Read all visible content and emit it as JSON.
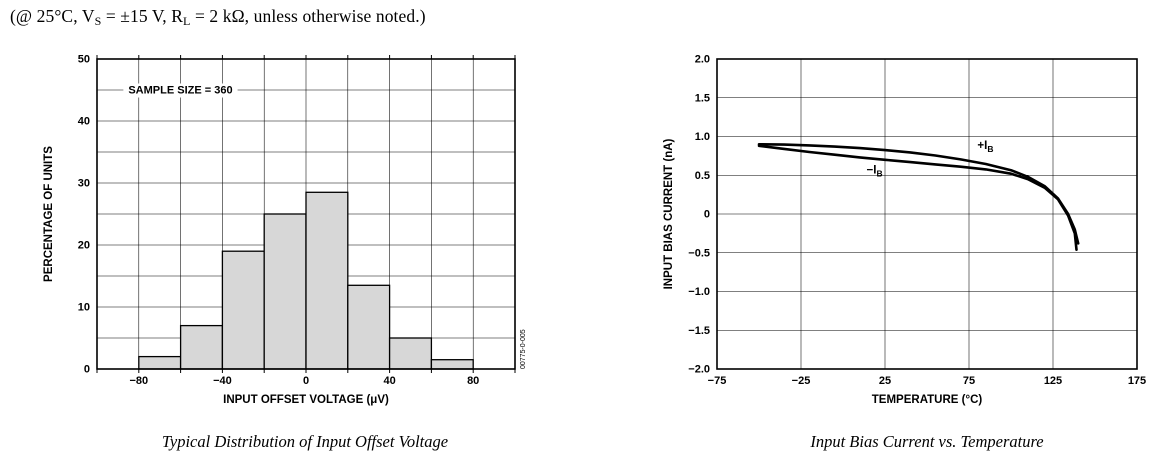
{
  "note": {
    "text": "(@ 25°C, VS = ±15 V, RL = 2 kΩ, unless otherwise noted.)",
    "parts": [
      {
        "text": "(@ 25°C, V"
      },
      {
        "text": "S",
        "sub": true
      },
      {
        "text": " = ±15 V, R"
      },
      {
        "text": "L",
        "sub": true
      },
      {
        "text": " = 2 kΩ, unless otherwise noted.)"
      }
    ]
  },
  "chart_data": [
    {
      "id": "offset-voltage-histogram",
      "type": "bar",
      "caption": "Typical Distribution of Input Offset Voltage",
      "annotation": {
        "text": "SAMPLE SIZE = 360",
        "x": -85,
        "y": 45
      },
      "xlabel": "INPUT OFFSET VOLTAGE (μV)",
      "ylabel": "PERCENTAGE OF UNITS",
      "xlim": [
        -100,
        100
      ],
      "ylim": [
        0,
        50
      ],
      "grid": true,
      "border_ticks": true,
      "x_grid_step": 20,
      "y_grid_step": 5,
      "x_ticks": [
        {
          "v": -80,
          "label": "−80"
        },
        {
          "v": -40,
          "label": "−40"
        },
        {
          "v": 0,
          "label": "0"
        },
        {
          "v": 40,
          "label": "40"
        },
        {
          "v": 80,
          "label": "80"
        }
      ],
      "y_ticks": [
        {
          "v": 0,
          "label": "0"
        },
        {
          "v": 10,
          "label": "10"
        },
        {
          "v": 20,
          "label": "20"
        },
        {
          "v": 30,
          "label": "30"
        },
        {
          "v": 40,
          "label": "40"
        },
        {
          "v": 50,
          "label": "50"
        }
      ],
      "bin_width": 20,
      "bars": [
        {
          "x_left": -80,
          "value": 2
        },
        {
          "x_left": -60,
          "value": 7
        },
        {
          "x_left": -40,
          "value": 19
        },
        {
          "x_left": -20,
          "value": 25
        },
        {
          "x_left": 0,
          "value": 28.5
        },
        {
          "x_left": 20,
          "value": 13.5
        },
        {
          "x_left": 40,
          "value": 5
        },
        {
          "x_left": 60,
          "value": 1.5
        }
      ],
      "bar_fill": "#d7d7d7",
      "figure_code": "00775-0-005"
    },
    {
      "id": "input-bias-current-vs-temperature",
      "type": "line",
      "caption": "Input Bias Current vs. Temperature",
      "xlabel": "TEMPERATURE (°C)",
      "ylabel": "INPUT BIAS CURRENT (nA)",
      "xlim": [
        -75,
        175
      ],
      "ylim": [
        -2,
        2
      ],
      "grid": true,
      "border_ticks": false,
      "x_grid_step": 50,
      "y_grid_step": 0.5,
      "x_ticks": [
        {
          "v": -75,
          "label": "−75"
        },
        {
          "v": -25,
          "label": "−25"
        },
        {
          "v": 25,
          "label": "25"
        },
        {
          "v": 75,
          "label": "75"
        },
        {
          "v": 125,
          "label": "125"
        },
        {
          "v": 175,
          "label": "175"
        }
      ],
      "y_ticks": [
        {
          "v": 2,
          "label": "2.0"
        },
        {
          "v": 1.5,
          "label": "1.5"
        },
        {
          "v": 1,
          "label": "1.0"
        },
        {
          "v": 0.5,
          "label": "0.5"
        },
        {
          "v": 0,
          "label": "0"
        },
        {
          "v": -0.5,
          "label": "−0.5"
        },
        {
          "v": -1,
          "label": "−1.0"
        },
        {
          "v": -1.5,
          "label": "−1.5"
        },
        {
          "v": -2,
          "label": "−2.0"
        }
      ],
      "series": [
        {
          "name": "plus-IB",
          "label": {
            "pre": "+I",
            "sub": "B"
          },
          "label_at": [
            80,
            0.84
          ],
          "points": [
            [
              -50,
              0.9
            ],
            [
              -35,
              0.895
            ],
            [
              -20,
              0.885
            ],
            [
              -5,
              0.87
            ],
            [
              10,
              0.85
            ],
            [
              25,
              0.825
            ],
            [
              40,
              0.795
            ],
            [
              55,
              0.755
            ],
            [
              70,
              0.705
            ],
            [
              85,
              0.645
            ],
            [
              100,
              0.565
            ],
            [
              110,
              0.48
            ],
            [
              120,
              0.36
            ],
            [
              128,
              0.2
            ],
            [
              134,
              0.0
            ],
            [
              138,
              -0.2
            ],
            [
              140,
              -0.38
            ]
          ]
        },
        {
          "name": "minus-IB",
          "label": {
            "pre": "−I",
            "sub": "B"
          },
          "label_at": [
            14,
            0.52
          ],
          "points": [
            [
              -50,
              0.88
            ],
            [
              -35,
              0.84
            ],
            [
              -20,
              0.8
            ],
            [
              -5,
              0.765
            ],
            [
              10,
              0.73
            ],
            [
              25,
              0.7
            ],
            [
              40,
              0.67
            ],
            [
              55,
              0.64
            ],
            [
              70,
              0.61
            ],
            [
              85,
              0.575
            ],
            [
              100,
              0.52
            ],
            [
              110,
              0.45
            ],
            [
              120,
              0.34
            ],
            [
              128,
              0.19
            ],
            [
              134,
              -0.02
            ],
            [
              138,
              -0.25
            ],
            [
              139,
              -0.46
            ]
          ]
        }
      ],
      "line_color": "#000000"
    }
  ]
}
